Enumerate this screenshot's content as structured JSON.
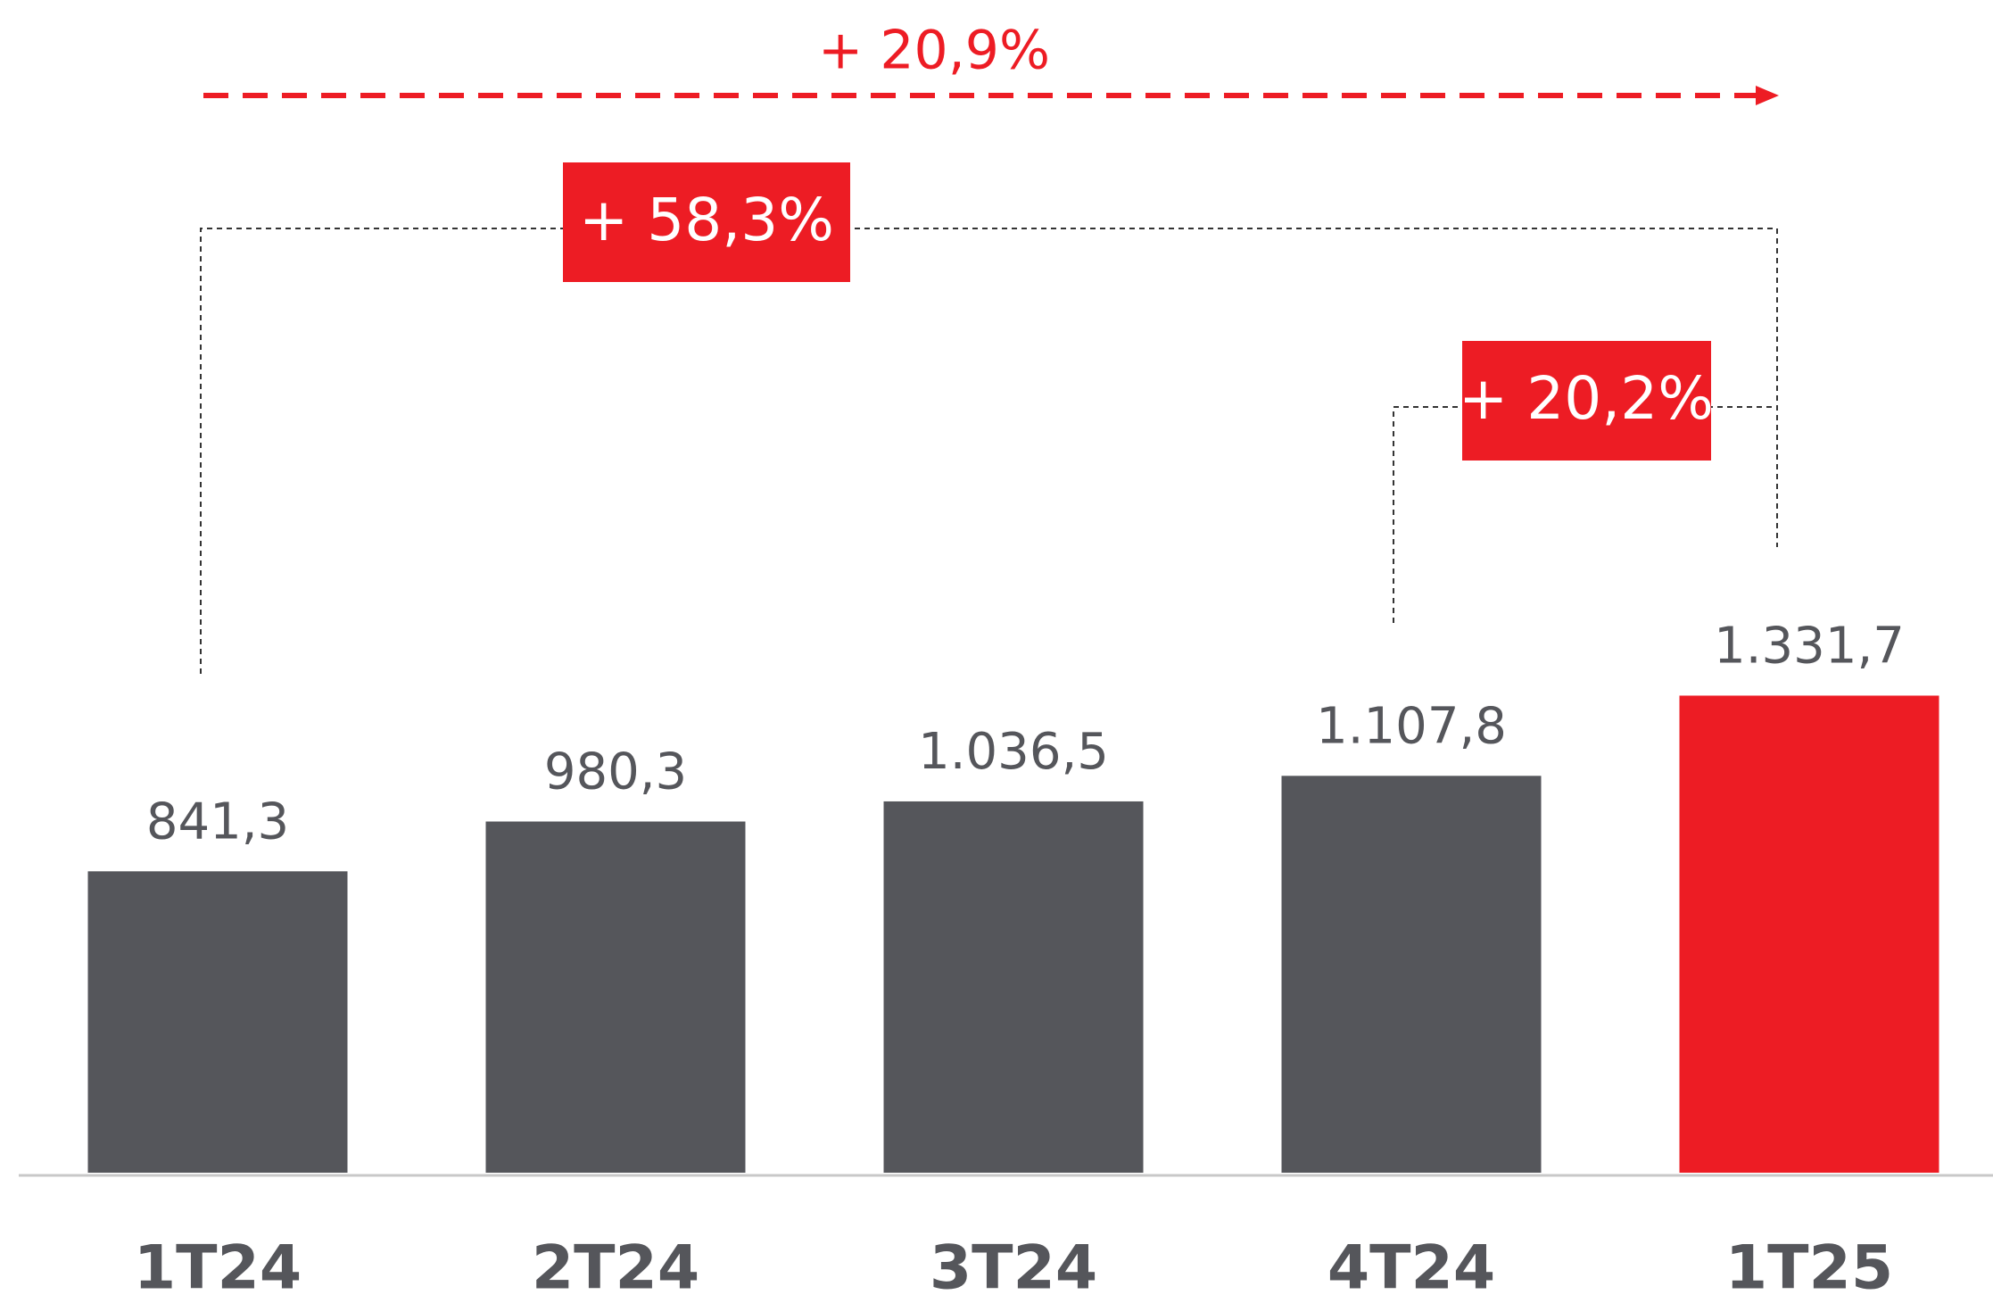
{
  "chart_data": {
    "type": "bar",
    "categories": [
      "1T24",
      "2T24",
      "3T24",
      "4T24",
      "1T25"
    ],
    "values": [
      841.3,
      980.3,
      1036.5,
      1107.8,
      1331.7
    ],
    "value_labels": [
      "841,3",
      "980,3",
      "1.036,5",
      "1.107,8",
      "1.331,7"
    ],
    "colors": [
      "#55565b",
      "#55565b",
      "#55565b",
      "#55565b",
      "#ed1c24"
    ],
    "annotations": [
      "+ 20,9%",
      "+ 58,3%",
      "+ 20,2%"
    ]
  }
}
